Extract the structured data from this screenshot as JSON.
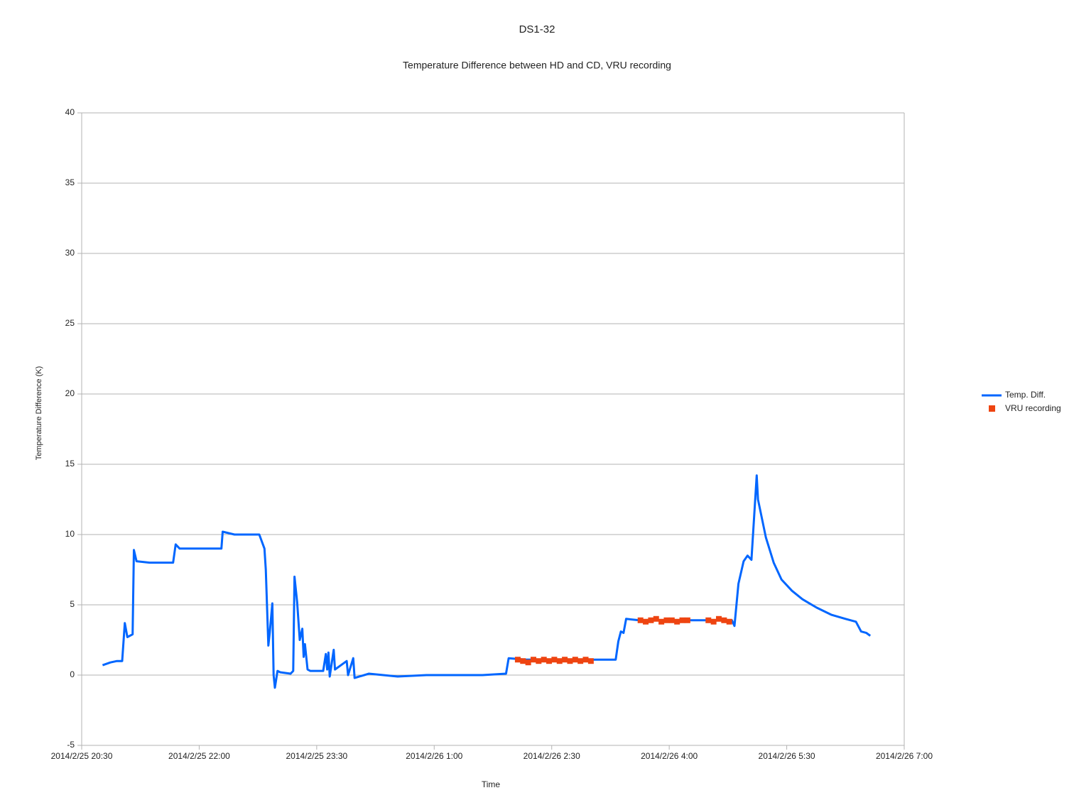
{
  "chart_data": {
    "type": "line",
    "title": "DS1-32",
    "subtitle": "Temperature Difference between HD and CD, VRU recording",
    "x_label": "Time",
    "y_label": "Temperature Difference (K)",
    "xlim": [
      "2014/2/25 20:30",
      "2014/2/26 7:00"
    ],
    "xticks": [
      "2014/2/25 20:30",
      "2014/2/25 22:00",
      "2014/2/25 23:30",
      "2014/2/26 1:00",
      "2014/2/26 2:30",
      "2014/2/26 4:00",
      "2014/2/26 5:30",
      "2014/2/26 7:00"
    ],
    "ylim": [
      -5,
      40
    ],
    "yticks": [
      -5,
      0,
      5,
      10,
      15,
      20,
      25,
      30,
      35,
      40
    ],
    "grid": true,
    "legend": "right",
    "series": [
      {
        "name": "Temp. Diff.",
        "type": "line",
        "color": "#0066ff",
        "x": [
          "2014/2/25 20:46",
          "2014/2/25 20:52",
          "2014/2/25 20:57",
          "2014/2/25 21:01",
          "2014/2/25 21:03",
          "2014/2/25 21:05",
          "2014/2/25 21:09",
          "2014/2/25 21:10",
          "2014/2/25 21:12",
          "2014/2/25 21:22",
          "2014/2/25 21:33",
          "2014/2/25 21:40",
          "2014/2/25 21:42",
          "2014/2/25 21:45",
          "2014/2/25 22:00",
          "2014/2/25 22:11",
          "2014/2/25 22:17",
          "2014/2/25 22:18",
          "2014/2/25 22:27",
          "2014/2/25 22:38",
          "2014/2/25 22:46",
          "2014/2/25 22:50",
          "2014/2/25 22:51",
          "2014/2/25 22:53",
          "2014/2/25 22:54",
          "2014/2/25 22:56",
          "2014/2/25 22:57",
          "2014/2/25 22:58",
          "2014/2/25 23:00",
          "2014/2/25 23:02",
          "2014/2/25 23:10",
          "2014/2/25 23:12",
          "2014/2/25 23:13",
          "2014/2/25 23:15",
          "2014/2/25 23:17",
          "2014/2/25 23:19",
          "2014/2/25 23:20",
          "2014/2/25 23:21",
          "2014/2/25 23:23",
          "2014/2/25 23:25",
          "2014/2/25 23:35",
          "2014/2/25 23:37",
          "2014/2/25 23:38",
          "2014/2/25 23:39",
          "2014/2/25 23:40",
          "2014/2/25 23:43",
          "2014/2/25 23:44",
          "2014/2/25 23:53",
          "2014/2/25 23:54",
          "2014/2/25 23:58",
          "2014/2/25 23:59",
          "2014/2/26 0:10",
          "2014/2/26 0:32",
          "2014/2/26 0:54",
          "2014/2/26 1:16",
          "2014/2/26 1:37",
          "2014/2/26 1:55",
          "2014/2/26 1:57",
          "2014/2/26 2:10",
          "2014/2/26 2:43",
          "2014/2/26 3:04",
          "2014/2/26 3:19",
          "2014/2/26 3:21",
          "2014/2/26 3:23",
          "2014/2/26 3:25",
          "2014/2/26 3:27",
          "2014/2/26 3:37",
          "2014/2/26 3:59",
          "2014/2/26 4:21",
          "2014/2/26 4:48",
          "2014/2/26 4:50",
          "2014/2/26 4:53",
          "2014/2/26 4:57",
          "2014/2/26 5:00",
          "2014/2/26 5:03",
          "2014/2/26 5:07",
          "2014/2/26 5:08",
          "2014/2/26 5:14",
          "2014/2/26 5:20",
          "2014/2/26 5:26",
          "2014/2/26 5:34",
          "2014/2/26 5:42",
          "2014/2/26 5:53",
          "2014/2/26 6:04",
          "2014/2/26 6:15",
          "2014/2/26 6:23",
          "2014/2/26 6:27",
          "2014/2/26 6:31",
          "2014/2/26 6:34"
        ],
        "values": [
          0.7,
          0.9,
          1.0,
          1.0,
          3.7,
          2.7,
          2.9,
          8.9,
          8.1,
          8.0,
          8.0,
          8.0,
          9.3,
          9.0,
          9.0,
          9.0,
          9.0,
          10.2,
          10.0,
          10.0,
          10.0,
          9.0,
          7.5,
          2.1,
          3.0,
          5.1,
          0.0,
          -0.9,
          0.3,
          0.2,
          0.1,
          0.3,
          7.0,
          5.2,
          2.5,
          3.3,
          1.3,
          2.2,
          0.4,
          0.3,
          0.3,
          1.5,
          0.4,
          1.6,
          -0.1,
          1.8,
          0.4,
          1.0,
          0.0,
          1.2,
          -0.2,
          0.1,
          -0.1,
          0.0,
          0.0,
          0.0,
          0.1,
          1.2,
          1.1,
          1.1,
          1.1,
          1.1,
          2.4,
          3.1,
          3.0,
          4.0,
          3.9,
          3.9,
          3.9,
          3.9,
          3.5,
          6.5,
          8.1,
          8.5,
          8.2,
          14.2,
          12.5,
          9.8,
          8.0,
          6.8,
          6.0,
          5.4,
          4.8,
          4.3,
          4.0,
          3.8,
          3.1,
          3.0,
          2.8
        ]
      },
      {
        "name": "VRU recording",
        "type": "scatter",
        "color": "#ee4411",
        "x": [
          "2014/2/26 2:04",
          "2014/2/26 2:08",
          "2014/2/26 2:12",
          "2014/2/26 2:16",
          "2014/2/26 2:20",
          "2014/2/26 2:24",
          "2014/2/26 2:28",
          "2014/2/26 2:32",
          "2014/2/26 2:36",
          "2014/2/26 2:40",
          "2014/2/26 2:44",
          "2014/2/26 2:48",
          "2014/2/26 2:52",
          "2014/2/26 2:56",
          "2014/2/26 3:00",
          "2014/2/26 3:38",
          "2014/2/26 3:42",
          "2014/2/26 3:46",
          "2014/2/26 3:50",
          "2014/2/26 3:54",
          "2014/2/26 3:58",
          "2014/2/26 4:02",
          "2014/2/26 4:06",
          "2014/2/26 4:10",
          "2014/2/26 4:14",
          "2014/2/26 4:30",
          "2014/2/26 4:34",
          "2014/2/26 4:38",
          "2014/2/26 4:42",
          "2014/2/26 4:46"
        ],
        "values": [
          1.1,
          1.0,
          0.9,
          1.1,
          1.0,
          1.1,
          1.0,
          1.1,
          1.0,
          1.1,
          1.0,
          1.1,
          1.0,
          1.1,
          1.0,
          3.9,
          3.8,
          3.9,
          4.0,
          3.8,
          3.9,
          3.9,
          3.8,
          3.9,
          3.9,
          3.9,
          3.8,
          4.0,
          3.9,
          3.8
        ]
      }
    ]
  }
}
